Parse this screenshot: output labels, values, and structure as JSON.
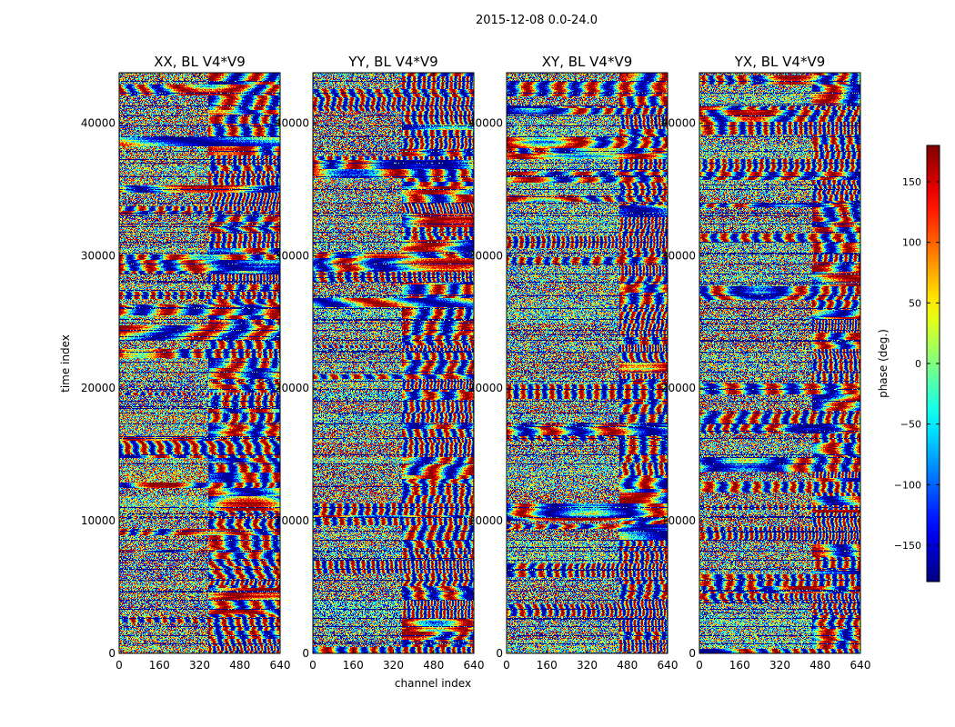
{
  "chart_data": {
    "type": "heatmap",
    "title": "2015-12-08 0.0-24.0",
    "xlabel": "channel index",
    "ylabel": "time index",
    "xlim": [
      0,
      640
    ],
    "ylim": [
      0,
      43800
    ],
    "x_ticks": [
      "0",
      "160",
      "320",
      "480",
      "640"
    ],
    "y_ticks": [
      "0",
      "10000",
      "20000",
      "30000",
      "40000"
    ],
    "x_tick_values": [
      0,
      160,
      320,
      480,
      640
    ],
    "y_tick_values": [
      0,
      10000,
      20000,
      30000,
      40000
    ],
    "panels": [
      {
        "title": "XX, BL V4*V9",
        "seed": 11,
        "mode": "a"
      },
      {
        "title": "YY, BL V4*V9",
        "seed": 23,
        "mode": "b"
      },
      {
        "title": "XY, BL V4*V9",
        "seed": 37,
        "mode": "c"
      },
      {
        "title": "YX, BL V4*V9",
        "seed": 53,
        "mode": "c"
      }
    ],
    "colorbar": {
      "label": "phase (deg.)",
      "range": [
        -180,
        180
      ],
      "ticks": [
        "150",
        "100",
        "50",
        "0",
        "−50",
        "−100",
        "−150"
      ],
      "tick_values": [
        150,
        100,
        50,
        0,
        -50,
        -100,
        -150
      ],
      "colormap": "jet"
    },
    "flagged_time_rows": [
      700,
      1300,
      2000,
      2600,
      3300,
      4000,
      4700,
      5500,
      6300,
      7000,
      7700,
      8500,
      9200,
      10200,
      11000,
      14300,
      15000,
      16200,
      17300,
      18100,
      19000,
      19900,
      20500,
      21200,
      22000,
      22700,
      23600,
      24400,
      25200,
      26000,
      27000,
      28000,
      28600,
      29400,
      30200,
      31000,
      31800,
      32400,
      33000,
      33200,
      34000,
      35000,
      36000,
      37000,
      37900,
      39000,
      39800,
      40600,
      41300,
      42300,
      43200
    ]
  }
}
